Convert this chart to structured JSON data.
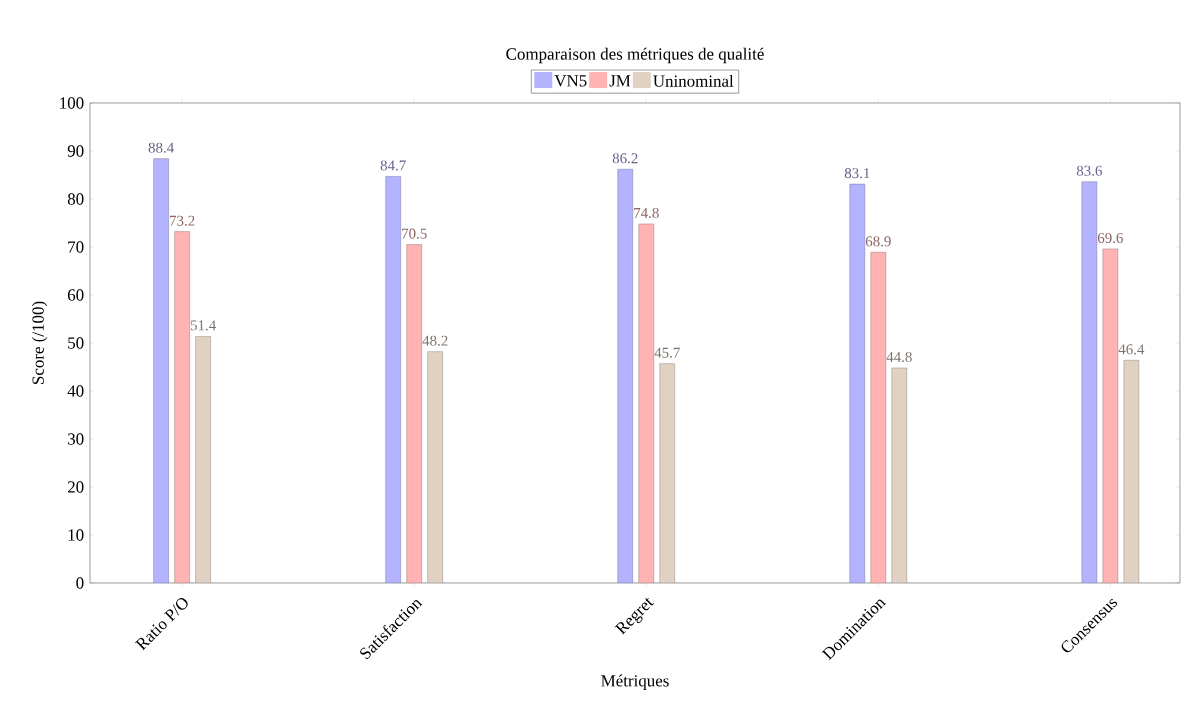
{
  "chart_data": {
    "type": "bar",
    "title": "Comparaison des métriques de qualité",
    "xlabel": "Métriques",
    "ylabel": "Score (/100)",
    "categories": [
      "Ratio P/O",
      "Satisfaction",
      "Regret",
      "Domination",
      "Consensus"
    ],
    "series": [
      {
        "name": "VN5",
        "color": "#b3b3ff",
        "values": [
          88.4,
          84.7,
          86.2,
          83.1,
          83.6
        ]
      },
      {
        "name": "JM",
        "color": "#ffb3b3",
        "values": [
          73.2,
          70.5,
          74.8,
          68.9,
          69.6
        ]
      },
      {
        "name": "Uninominal",
        "color": "#e0d1c2",
        "values": [
          51.4,
          48.2,
          45.7,
          44.8,
          46.4
        ]
      }
    ],
    "ylim": [
      0,
      100
    ],
    "yticks": [
      0,
      10,
      20,
      30,
      40,
      50,
      60,
      70,
      80,
      90,
      100
    ],
    "legend": "top",
    "data_labels": true
  }
}
